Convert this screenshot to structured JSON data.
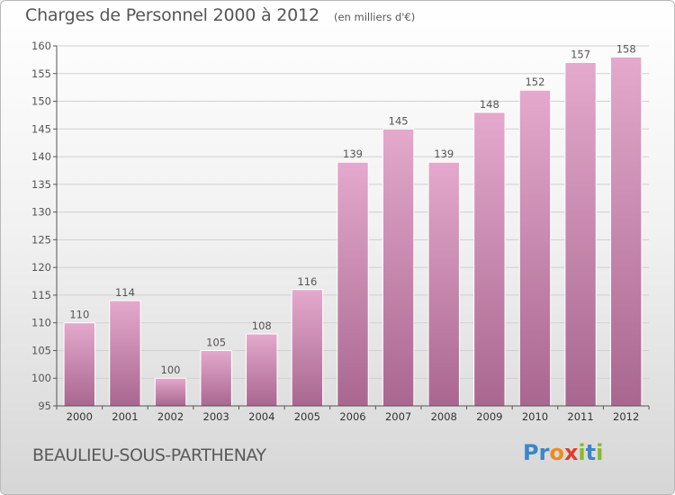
{
  "header": {
    "title": "Charges de Personnel 2000 à 2012",
    "unit_note": "(en milliers d'€)"
  },
  "footer": {
    "city": "BEAULIEU-SOUS-PARTHENAY",
    "logo_text": "Proxiti"
  },
  "colors": {
    "bar_light": "#e4a9cd",
    "bar_dark": "#a9678f",
    "gridline": "#d0d0d0",
    "text": "#555555"
  },
  "chart_data": {
    "type": "bar",
    "title": "Charges de Personnel 2000 à 2012",
    "subtitle": "(en milliers d'€)",
    "xlabel": "",
    "ylabel": "",
    "categories": [
      "2000",
      "2001",
      "2002",
      "2003",
      "2004",
      "2005",
      "2006",
      "2007",
      "2008",
      "2009",
      "2010",
      "2011",
      "2012"
    ],
    "values": [
      110,
      114,
      100,
      105,
      108,
      116,
      139,
      145,
      139,
      148,
      152,
      157,
      158
    ],
    "ylim": [
      95,
      160
    ],
    "yticks": [
      95,
      100,
      105,
      110,
      115,
      120,
      125,
      130,
      135,
      140,
      145,
      150,
      155,
      160
    ],
    "grid": true,
    "legend": "none"
  }
}
